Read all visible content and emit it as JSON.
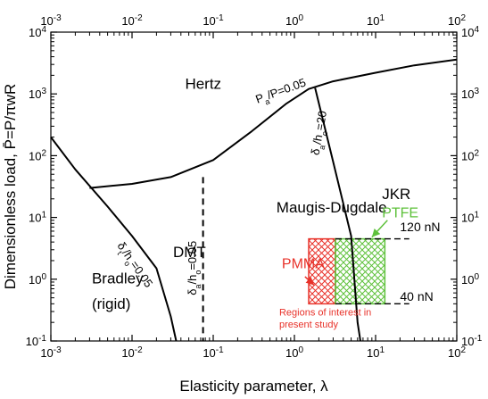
{
  "chart_data": {
    "type": "line",
    "xlabel": "Elasticity parameter, λ",
    "ylabel": "Dimensionless load, P̄=P/πwR",
    "xscale": "log",
    "yscale": "log",
    "xlim": [
      0.001,
      100
    ],
    "ylim": [
      0.1,
      10000
    ],
    "x_ticks": [
      {
        "value": 0.001,
        "base": "10",
        "exp": "-3"
      },
      {
        "value": 0.01,
        "base": "10",
        "exp": "-2"
      },
      {
        "value": 0.1,
        "base": "10",
        "exp": "-1"
      },
      {
        "value": 1,
        "base": "10",
        "exp": "0"
      },
      {
        "value": 10,
        "base": "10",
        "exp": "1"
      },
      {
        "value": 100,
        "base": "10",
        "exp": "2"
      }
    ],
    "y_ticks": [
      {
        "value": 0.1,
        "base": "10",
        "exp": "-1"
      },
      {
        "value": 1,
        "base": "10",
        "exp": "0"
      },
      {
        "value": 10,
        "base": "10",
        "exp": "1"
      },
      {
        "value": 100,
        "base": "10",
        "exp": "2"
      },
      {
        "value": 1000,
        "base": "10",
        "exp": "3"
      },
      {
        "value": 10000,
        "base": "10",
        "exp": "4"
      }
    ],
    "grid": false,
    "curves": [
      {
        "id": "upper-boundary",
        "style": "solid",
        "points": [
          [
            0.003,
            30
          ],
          [
            0.01,
            35
          ],
          [
            0.03,
            45
          ],
          [
            0.1,
            85
          ],
          [
            0.3,
            250
          ],
          [
            0.8,
            700
          ],
          [
            1.5,
            1200
          ],
          [
            3,
            1600
          ],
          [
            10,
            2200
          ],
          [
            30,
            2900
          ],
          [
            100,
            3600
          ]
        ]
      },
      {
        "id": "bradley-boundary",
        "style": "solid",
        "points": [
          [
            0.001,
            200
          ],
          [
            0.002,
            60
          ],
          [
            0.005,
            15
          ],
          [
            0.01,
            5
          ],
          [
            0.02,
            1.5
          ],
          [
            0.03,
            0.25
          ],
          [
            0.035,
            0.1
          ]
        ]
      },
      {
        "id": "dmt-boundary",
        "style": "dashed",
        "points": [
          [
            0.075,
            45
          ],
          [
            0.075,
            0.1
          ]
        ]
      },
      {
        "id": "jkr-boundary",
        "style": "solid",
        "points": [
          [
            1.8,
            1250
          ],
          [
            3,
            80
          ],
          [
            5,
            5
          ],
          [
            6,
            0.2
          ],
          [
            6.5,
            0.1
          ]
        ]
      }
    ],
    "regions": [
      {
        "label": "Hertz",
        "x": 0.045,
        "y": 1200
      },
      {
        "label": "Maugis-Dugdale",
        "x": 0.6,
        "y": 12
      },
      {
        "label": "DMT",
        "x": 0.032,
        "y": 2.3
      },
      {
        "label": "JKR",
        "x": 12,
        "y": 20
      },
      {
        "label": "Bradley",
        "x": 0.0032,
        "y": 0.85
      },
      {
        "label": "(rigid)",
        "x": 0.0032,
        "y": 0.33
      }
    ],
    "curve_labels": [
      {
        "base": "P",
        "sub": "a",
        "rest": "/P=0.05",
        "x": 0.35,
        "y": 700,
        "angle": -20
      },
      {
        "base": "δ",
        "sub": "t",
        "rest": "/h",
        "sub2": "o",
        "rest2": "=0.05",
        "x": 0.0065,
        "y": 3.5,
        "angle": 55
      },
      {
        "base": "δ",
        "sub": "a",
        "rest": "/h",
        "sub2": "o",
        "rest2": "=0.05",
        "x": 0.062,
        "y": 0.55,
        "angle": -90
      },
      {
        "base": "δ",
        "sub": "a",
        "rest": "/h",
        "sub2": "o",
        "rest2": "=20",
        "x": 2.0,
        "y": 100,
        "angle": -80
      }
    ],
    "hatch_regions": [
      {
        "name": "PMMA",
        "color": "#e8322a",
        "x": [
          1.5,
          3.2
        ],
        "y": [
          0.4,
          4.5
        ]
      },
      {
        "name": "PTFE",
        "color": "#5ec13b",
        "x": [
          3.2,
          13
        ],
        "y": [
          0.4,
          4.5
        ]
      }
    ],
    "annotations": [
      {
        "text": "PTFE",
        "color": "#5ec13b",
        "x": 12,
        "y": 10
      },
      {
        "text": "PMMA",
        "color": "#e8322a",
        "x": 0.7,
        "y": 1.5
      },
      {
        "text": "120 nN",
        "color": "#000000",
        "x": 20,
        "y": 6
      },
      {
        "text": "40 nN",
        "color": "#000000",
        "x": 20,
        "y": 0.45
      },
      {
        "text": "Regions of interest in",
        "color": "#e8322a",
        "x": 0.65,
        "y": 0.26
      },
      {
        "text": "present study",
        "color": "#e8322a",
        "x": 0.65,
        "y": 0.165
      }
    ],
    "force_lines": [
      {
        "y": 4.5,
        "x": [
          3.2,
          26
        ]
      },
      {
        "y": 0.4,
        "x": [
          3.2,
          26
        ]
      }
    ]
  }
}
